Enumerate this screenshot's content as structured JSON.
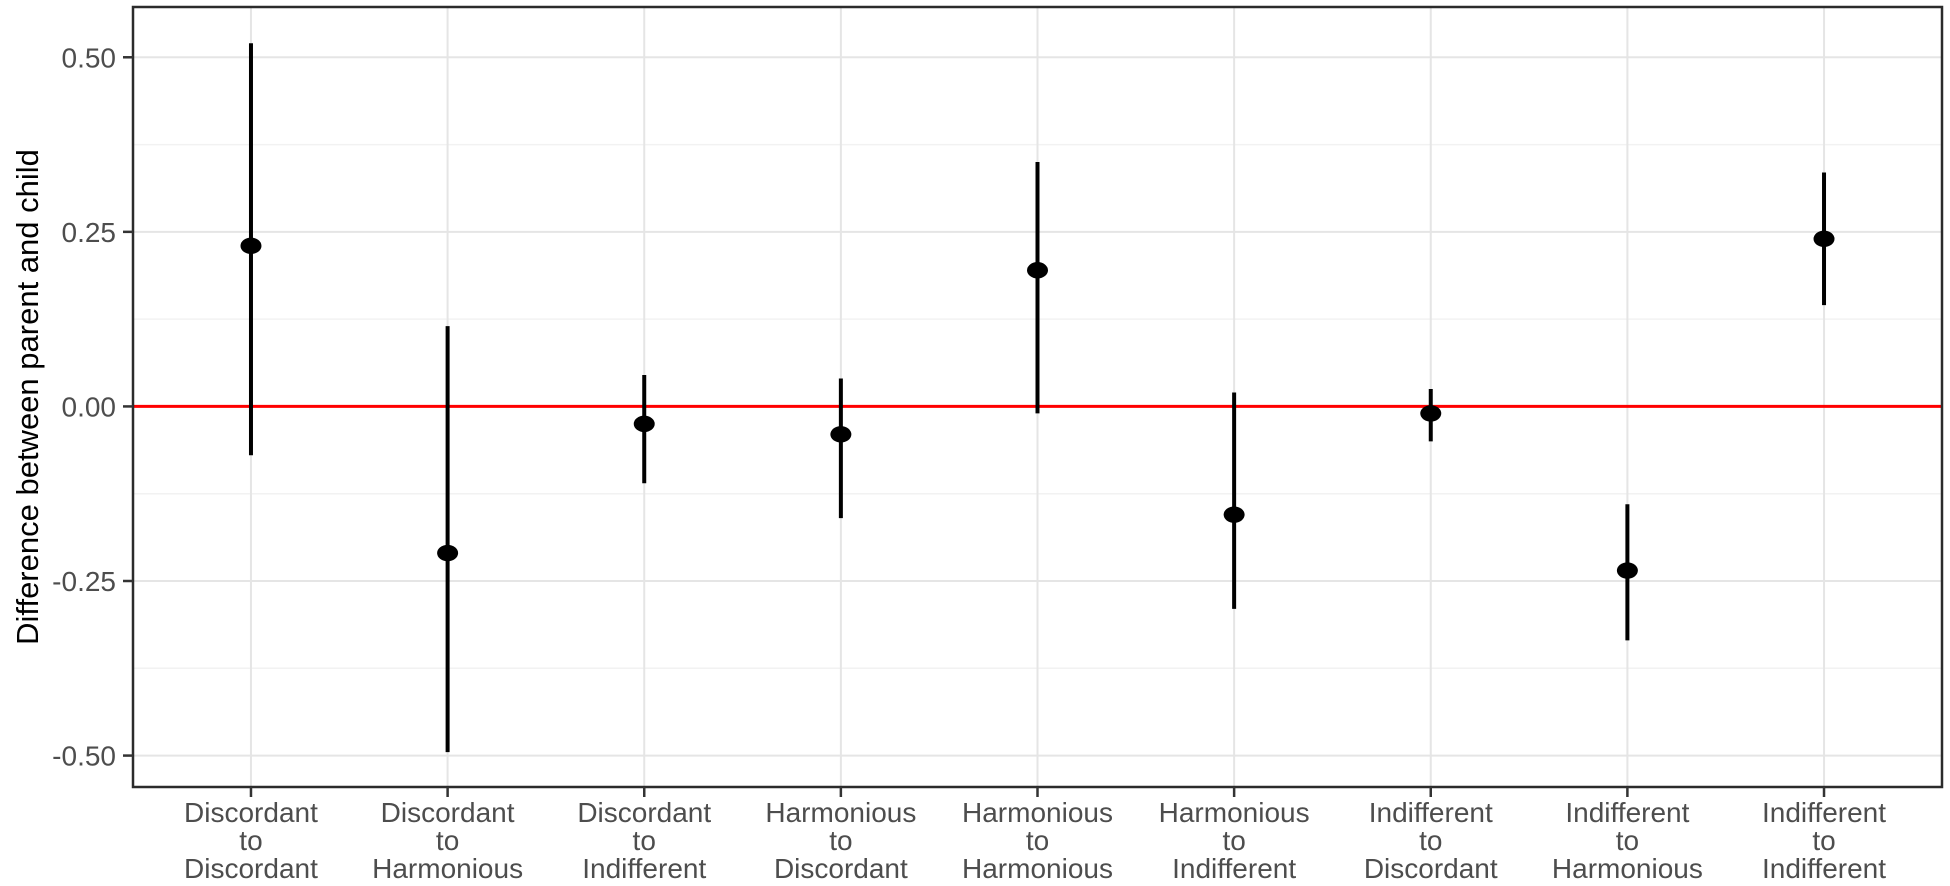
{
  "chart_data": {
    "type": "scatter",
    "subtype": "pointrange",
    "title": "",
    "xlabel": "",
    "ylabel": "Difference between parent and child",
    "ylim": [
      -0.545,
      0.572
    ],
    "yticks": [
      0.5,
      0.25,
      0.0,
      -0.25,
      -0.5
    ],
    "ytick_labels": [
      "0.50",
      "0.25",
      "0.00",
      "-0.25",
      "-0.50"
    ],
    "yminor_gridlines": [
      0.375,
      0.125,
      -0.125,
      -0.375
    ],
    "grid": "horizontal major+minor, vertical major at categories",
    "legend": "none",
    "reference_line": {
      "y": 0.0,
      "color": "#FF0000"
    },
    "categories": [
      {
        "label_lines": [
          "Discordant",
          "to",
          "Discordant"
        ],
        "estimate": 0.23,
        "lower": -0.07,
        "upper": 0.52
      },
      {
        "label_lines": [
          "Discordant",
          "to",
          "Harmonious"
        ],
        "estimate": -0.21,
        "lower": -0.495,
        "upper": 0.115
      },
      {
        "label_lines": [
          "Discordant",
          "to",
          "Indifferent"
        ],
        "estimate": -0.025,
        "lower": -0.11,
        "upper": 0.045
      },
      {
        "label_lines": [
          "Harmonious",
          "to",
          "Discordant"
        ],
        "estimate": -0.04,
        "lower": -0.16,
        "upper": 0.04
      },
      {
        "label_lines": [
          "Harmonious",
          "to",
          "Harmonious"
        ],
        "estimate": 0.195,
        "lower": -0.01,
        "upper": 0.35
      },
      {
        "label_lines": [
          "Harmonious",
          "to",
          "Indifferent"
        ],
        "estimate": -0.155,
        "lower": -0.29,
        "upper": 0.02
      },
      {
        "label_lines": [
          "Indifferent",
          "to",
          "Discordant"
        ],
        "estimate": -0.01,
        "lower": -0.05,
        "upper": 0.025
      },
      {
        "label_lines": [
          "Indifferent",
          "to",
          "Harmonious"
        ],
        "estimate": -0.235,
        "lower": -0.335,
        "upper": -0.14
      },
      {
        "label_lines": [
          "Indifferent",
          "to",
          "Indifferent"
        ],
        "estimate": 0.24,
        "lower": 0.145,
        "upper": 0.335
      }
    ],
    "colors": {
      "reference_line": "#FF0000",
      "point": "#000000",
      "errorbar": "#000000",
      "grid_major": "#E5E5E5",
      "grid_minor": "#F2F2F2",
      "panel_border": "#2B2B2B",
      "tick": "#333333",
      "tick_label": "#4D4D4D",
      "axis_title": "#000000",
      "background": "#FFFFFF"
    }
  }
}
